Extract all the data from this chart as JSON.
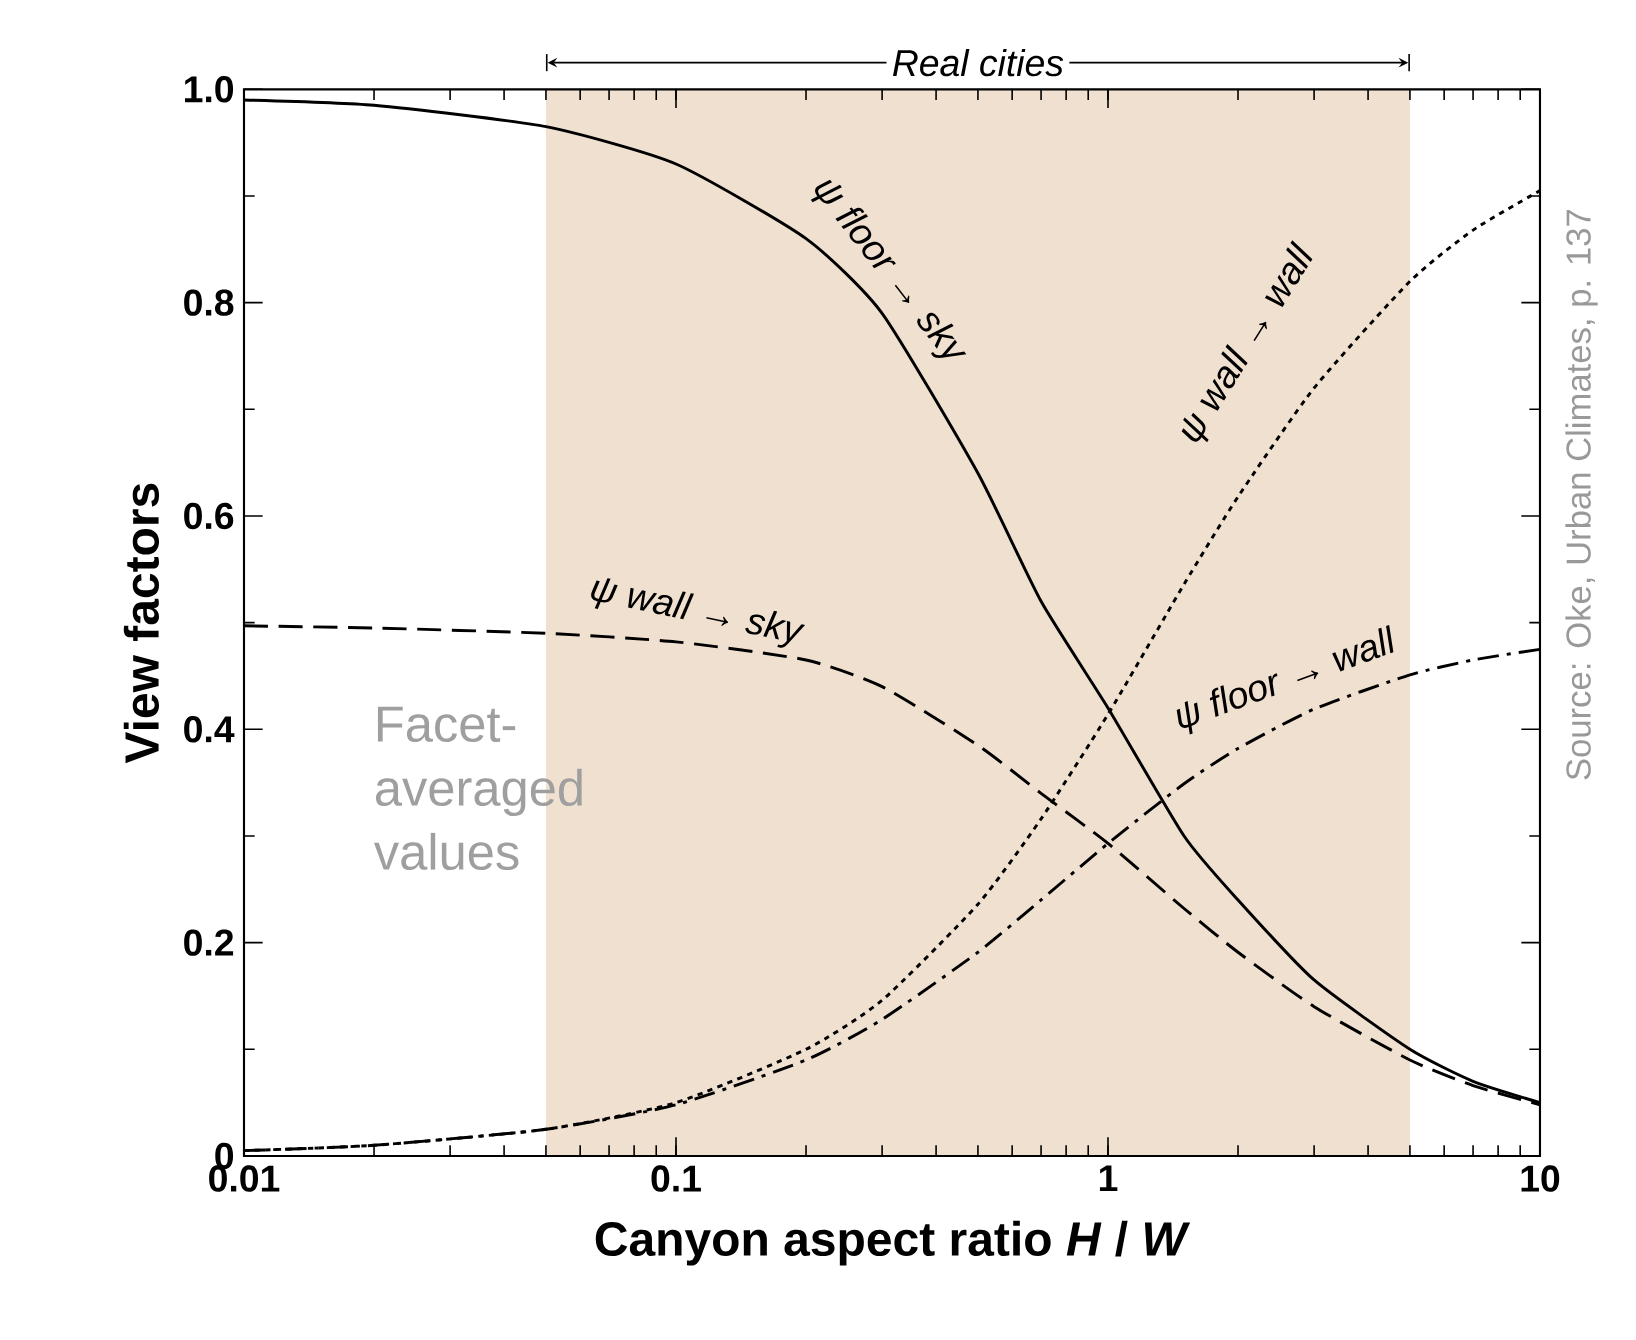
{
  "chart_data": {
    "type": "line",
    "xlabel": "Canyon aspect ratio *H* / *W*",
    "ylabel": "View factors",
    "x": [
      0.01,
      0.02,
      0.05,
      0.1,
      0.2,
      0.3,
      0.5,
      0.7,
      1,
      1.5,
      2,
      3,
      5,
      7,
      10
    ],
    "series": [
      {
        "name": "ψ floor → sky",
        "color": "#000000",
        "line_style": "solid",
        "values": [
          0.99,
          0.985,
          0.965,
          0.93,
          0.86,
          0.79,
          0.64,
          0.52,
          0.42,
          0.3,
          0.24,
          0.165,
          0.1,
          0.07,
          0.05
        ]
      },
      {
        "name": "ψ wall → sky",
        "color": "#000000",
        "line_style": "dashed",
        "values": [
          0.497,
          0.495,
          0.49,
          0.482,
          0.465,
          0.44,
          0.385,
          0.34,
          0.293,
          0.232,
          0.191,
          0.14,
          0.09,
          0.066,
          0.048
        ]
      },
      {
        "name": "ψ wall → wall",
        "color": "#000000",
        "line_style": "dotted",
        "values": [
          0.005,
          0.01,
          0.025,
          0.05,
          0.1,
          0.146,
          0.236,
          0.316,
          0.414,
          0.536,
          0.618,
          0.72,
          0.82,
          0.868,
          0.905
        ]
      },
      {
        "name": "ψ floor → wall",
        "color": "#000000",
        "line_style": "dashdot",
        "values": [
          0.005,
          0.01,
          0.025,
          0.048,
          0.09,
          0.128,
          0.191,
          0.24,
          0.293,
          0.349,
          0.382,
          0.419,
          0.451,
          0.465,
          0.475
        ]
      }
    ],
    "log": "x",
    "xlim": [
      0.01,
      10
    ],
    "ylim": [
      0,
      1
    ],
    "xticks": [
      0.01,
      0.1,
      1,
      10
    ],
    "yticks": [
      0,
      0.2,
      0.4,
      0.6,
      0.8,
      {
        "value": 1,
        "label": "1.0"
      }
    ],
    "grid": false,
    "legend": false,
    "marker": "none",
    "bands": [
      {
        "axis": "x",
        "from": 0.05,
        "to": 5,
        "label": "Real cities",
        "color": "#f0e0d0"
      }
    ],
    "annotations": [
      "Facet-averaged values",
      "Source: Oke, Urban Climates, p. 137"
    ]
  }
}
